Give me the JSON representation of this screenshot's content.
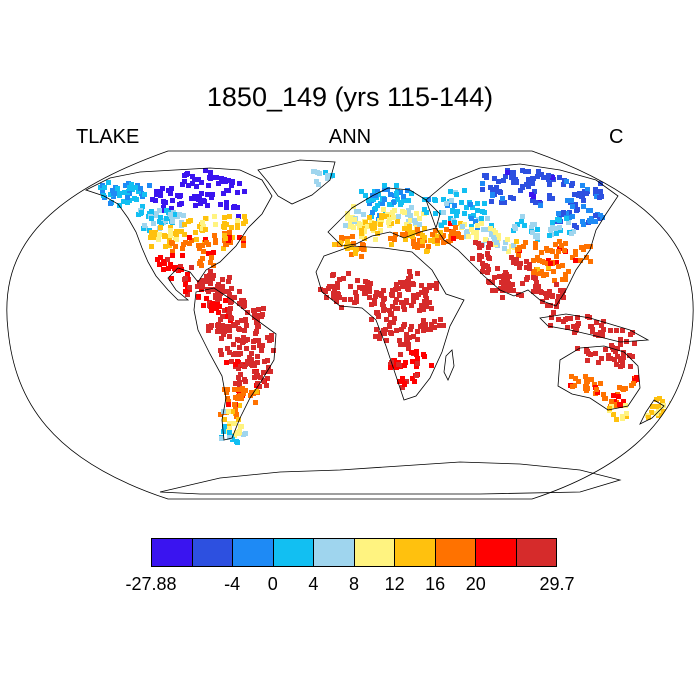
{
  "title": "1850_149 (yrs 115-144)",
  "subtitle": {
    "left": "TLAKE",
    "center": "ANN",
    "right": "C"
  },
  "colorbar": {
    "colors": [
      "#3a14f0",
      "#2d50e0",
      "#1e8af5",
      "#12bff2",
      "#9fd5ee",
      "#fff380",
      "#ffc10e",
      "#ff7200",
      "#ff0000",
      "#d62b2b"
    ],
    "labels": [
      {
        "text": "-27.88",
        "boundary": 0
      },
      {
        "text": "-4",
        "boundary": 2
      },
      {
        "text": "0",
        "boundary": 3
      },
      {
        "text": "4",
        "boundary": 4
      },
      {
        "text": "8",
        "boundary": 5
      },
      {
        "text": "12",
        "boundary": 6
      },
      {
        "text": "16",
        "boundary": 7
      },
      {
        "text": "20",
        "boundary": 8
      },
      {
        "text": "29.7",
        "boundary": 10
      }
    ]
  },
  "map": {
    "projection": "Robinson",
    "field": "lake temperature (annual mean)",
    "colored_regions": [
      {
        "region": "Northern Canada",
        "value": -12
      },
      {
        "region": "Alaska",
        "value": 1
      },
      {
        "region": "Western Canada",
        "value": 4
      },
      {
        "region": "Northern USA",
        "value": 13
      },
      {
        "region": "Southern USA",
        "value": 18
      },
      {
        "region": "Mexico",
        "value": 24
      },
      {
        "region": "Caribbean",
        "value": 27
      },
      {
        "region": "Colombia",
        "value": 25
      },
      {
        "region": "Amazon",
        "value": 27
      },
      {
        "region": "Brazil",
        "value": 26
      },
      {
        "region": "Argentina",
        "value": 18
      },
      {
        "region": "Patagonia",
        "value": 10
      },
      {
        "region": "Southern Chile",
        "value": 3
      },
      {
        "region": "Scandinavia",
        "value": 1
      },
      {
        "region": "Iceland",
        "value": 5
      },
      {
        "region": "UK",
        "value": 10
      },
      {
        "region": "Western Europe",
        "value": 12
      },
      {
        "region": "Central Europe",
        "value": 9
      },
      {
        "region": "Iberia",
        "value": 17
      },
      {
        "region": "Balkans",
        "value": 15
      },
      {
        "region": "Turkey",
        "value": 16
      },
      {
        "region": "Caspian",
        "value": 18
      },
      {
        "region": "Russia",
        "value": 2
      },
      {
        "region": "Siberia",
        "value": -6
      },
      {
        "region": "Far East Russia",
        "value": -3
      },
      {
        "region": "Central Asia",
        "value": 8
      },
      {
        "region": "Mongolia",
        "value": 4
      },
      {
        "region": "China",
        "value": 18
      },
      {
        "region": "India",
        "value": 27
      },
      {
        "region": "Southeast Asia",
        "value": 27
      },
      {
        "region": "Indonesia",
        "value": 28
      },
      {
        "region": "West Africa",
        "value": 28
      },
      {
        "region": "East Africa",
        "value": 27
      },
      {
        "region": "Central Africa",
        "value": 28
      },
      {
        "region": "Southern Africa",
        "value": 23
      },
      {
        "region": "North Australia",
        "value": 27
      },
      {
        "region": "South Australia",
        "value": 19
      },
      {
        "region": "Tasmania",
        "value": 12
      },
      {
        "region": "New Zealand",
        "value": 13
      }
    ]
  }
}
